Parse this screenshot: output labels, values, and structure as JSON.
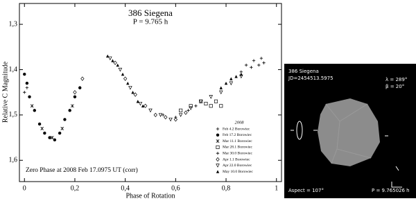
{
  "chart_data": {
    "type": "scatter",
    "title": "386 Siegena",
    "subtitle": "P = 9.765 h",
    "x_label": "Phase of Rotation",
    "y_label": "Relative C Magnitude",
    "annotation": "Zero Phase at 2008 Feb 17.0975 UT (corr)",
    "legend_title": "2008",
    "xlim": [
      -0.02,
      1.02
    ],
    "ylim": [
      1.647,
      1.254
    ],
    "y_inverted": true,
    "grid": false,
    "xticks": [
      0,
      {
        "value": 0.2,
        "label": "0,2"
      },
      {
        "value": 0.4,
        "label": "0,4"
      },
      {
        "value": 0.6,
        "label": "0,6"
      },
      {
        "value": 0.8,
        "label": "0,8"
      },
      1
    ],
    "yticks": [
      {
        "value": 1.3,
        "label": "1,3"
      },
      {
        "value": 1.4,
        "label": "1,4"
      },
      {
        "value": 1.5,
        "label": "1,5"
      },
      {
        "value": 1.6,
        "label": "1,6"
      }
    ],
    "series": [
      {
        "name": "Feb 4.2 Borowiec",
        "marker": "plus",
        "color": "#000000",
        "x": [
          0.0,
          0.01,
          0.86,
          0.9,
          0.93,
          0.95
        ],
        "values": [
          1.45,
          1.44,
          1.405,
          1.395,
          1.39,
          1.385
        ]
      },
      {
        "name": "Feb 17.2 Borowiec",
        "marker": "circle-filled",
        "color": "#000000",
        "x": [
          0.0,
          0.01,
          0.02,
          0.04,
          0.06,
          0.08,
          0.1,
          0.12,
          0.14,
          0.16,
          0.18,
          0.2,
          0.22
        ],
        "values": [
          1.41,
          1.43,
          1.46,
          1.49,
          1.52,
          1.54,
          1.55,
          1.555,
          1.54,
          1.51,
          1.49,
          1.46,
          1.44
        ]
      },
      {
        "name": "Mar 11.1 Borowiec",
        "marker": "cross",
        "color": "#000000",
        "x": [
          0.03,
          0.07,
          0.11,
          0.15,
          0.19
        ],
        "values": [
          1.48,
          1.53,
          1.55,
          1.53,
          1.48
        ]
      },
      {
        "name": "Mar 28.1 Borowiec",
        "marker": "square",
        "color": "#000000",
        "x": [
          0.62,
          0.66,
          0.7,
          0.72,
          0.74,
          0.76,
          0.78
        ],
        "values": [
          1.49,
          1.48,
          1.47,
          1.475,
          1.48,
          1.47,
          1.48
        ]
      },
      {
        "name": "Mar 30.0 Borowiec",
        "marker": "plus",
        "color": "#000000",
        "x": [
          0.55,
          0.6,
          0.65,
          0.68,
          0.88,
          0.91,
          0.94
        ],
        "values": [
          1.5,
          1.505,
          1.49,
          1.48,
          1.39,
          1.38,
          1.375
        ]
      },
      {
        "name": "Apr 1.1 Borowiec",
        "marker": "diamond",
        "color": "#000000",
        "x": [
          0.2,
          0.23,
          0.36,
          0.4,
          0.44,
          0.48,
          0.52,
          0.56,
          0.6,
          0.64
        ],
        "values": [
          1.45,
          1.42,
          1.385,
          1.42,
          1.455,
          1.48,
          1.5,
          1.505,
          1.51,
          1.495
        ]
      },
      {
        "name": "Apr 22.0 Borowiec",
        "marker": "triangle-down",
        "color": "#000000",
        "x": [
          0.34,
          0.38,
          0.42,
          0.46,
          0.5,
          0.54,
          0.58,
          0.62,
          0.66,
          0.7,
          0.74,
          0.78,
          0.82,
          0.86
        ],
        "values": [
          1.375,
          1.4,
          1.44,
          1.475,
          1.49,
          1.5,
          1.51,
          1.5,
          1.485,
          1.47,
          1.46,
          1.45,
          1.43,
          1.415
        ]
      },
      {
        "name": "May 10.0 Borowiec",
        "marker": "triangle-filled",
        "color": "#000000",
        "x": [
          0.33,
          0.35,
          0.37,
          0.39,
          0.41,
          0.43,
          0.45,
          0.47,
          0.78,
          0.8,
          0.82,
          0.84,
          0.86
        ],
        "values": [
          1.37,
          1.38,
          1.39,
          1.41,
          1.43,
          1.45,
          1.47,
          1.48,
          1.44,
          1.43,
          1.42,
          1.415,
          1.41
        ]
      }
    ]
  },
  "model_panel": {
    "name": "386 Siegena",
    "jd": "JD=2454513.5975",
    "lambda": "λ = 289°",
    "beta": "β = 20°",
    "aspect": "Aspect = 107°",
    "period": "P = 9.765026 h"
  }
}
